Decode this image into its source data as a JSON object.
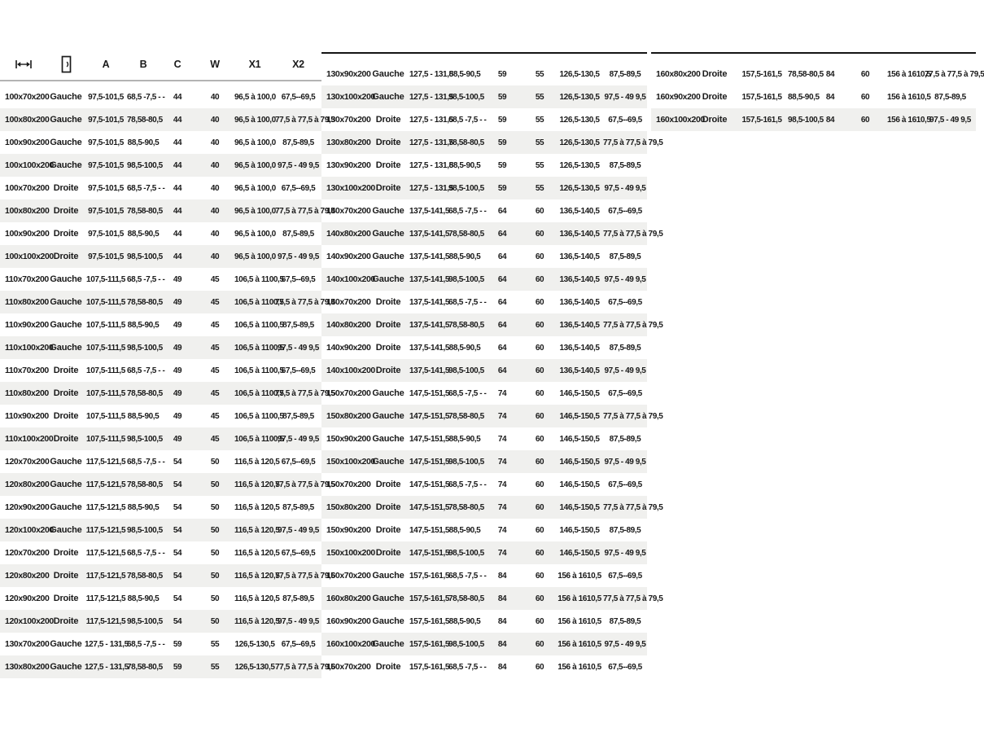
{
  "page": {
    "background": "#ffffff"
  },
  "colors": {
    "text": "#1a1a1a",
    "row_stripe": "#f0f0ee",
    "header_underline": "#b3b3b3",
    "table_top_border": "#141414"
  },
  "header": {
    "icon_columns": [
      "width-measure-icon",
      "door-icon"
    ],
    "columns": [
      "A",
      "B",
      "C",
      "W",
      "X1",
      "X2"
    ]
  },
  "tables": {
    "left": {
      "rows": [
        [
          "100x70x200",
          "Gauche",
          "97,5-101,5",
          "68,5 -7,5 - -",
          "44",
          "40",
          "96,5 à 100,0",
          "67,5--69,5"
        ],
        [
          "100x80x200",
          "Gauche",
          "97,5-101,5",
          "78,58-80,5",
          "44",
          "40",
          "96,5 à 100,0",
          "77,5 à 77,5 à 79,5"
        ],
        [
          "100x90x200",
          "Gauche",
          "97,5-101,5",
          "88,5-90,5",
          "44",
          "40",
          "96,5 à 100,0",
          "87,5-89,5"
        ],
        [
          "100x100x200",
          "Gauche",
          "97,5-101,5",
          "98,5-100,5",
          "44",
          "40",
          "96,5 à 100,0",
          "97,5 - 49 9,5"
        ],
        [
          "100x70x200",
          "Droite",
          "97,5-101,5",
          "68,5 -7,5 - -",
          "44",
          "40",
          "96,5 à 100,0",
          "67,5--69,5"
        ],
        [
          "100x80x200",
          "Droite",
          "97,5-101,5",
          "78,58-80,5",
          "44",
          "40",
          "96,5 à 100,0",
          "77,5 à 77,5 à 79,5"
        ],
        [
          "100x90x200",
          "Droite",
          "97,5-101,5",
          "88,5-90,5",
          "44",
          "40",
          "96,5 à 100,0",
          "87,5-89,5"
        ],
        [
          "100x100x200",
          "Droite",
          "97,5-101,5",
          "98,5-100,5",
          "44",
          "40",
          "96,5 à 100,0",
          "97,5 - 49 9,5"
        ],
        [
          "110x70x200",
          "Gauche",
          "107,5-111,5",
          "68,5 -7,5 - -",
          "49",
          "45",
          "106,5 à 1100,5",
          "67,5--69,5"
        ],
        [
          "110x80x200",
          "Gauche",
          "107,5-111,5",
          "78,58-80,5",
          "49",
          "45",
          "106,5 à 1100,5",
          "77,5 à 77,5 à 79,5"
        ],
        [
          "110x90x200",
          "Gauche",
          "107,5-111,5",
          "88,5-90,5",
          "49",
          "45",
          "106,5 à 1100,5",
          "87,5-89,5"
        ],
        [
          "110x100x200",
          "Gauche",
          "107,5-111,5",
          "98,5-100,5",
          "49",
          "45",
          "106,5 à 1100,5",
          "97,5 - 49 9,5"
        ],
        [
          "110x70x200",
          "Droite",
          "107,5-111,5",
          "68,5 -7,5 - -",
          "49",
          "45",
          "106,5 à 1100,5",
          "67,5--69,5"
        ],
        [
          "110x80x200",
          "Droite",
          "107,5-111,5",
          "78,58-80,5",
          "49",
          "45",
          "106,5 à 1100,5",
          "77,5 à 77,5 à 79,5"
        ],
        [
          "110x90x200",
          "Droite",
          "107,5-111,5",
          "88,5-90,5",
          "49",
          "45",
          "106,5 à 1100,5",
          "87,5-89,5"
        ],
        [
          "110x100x200",
          "Droite",
          "107,5-111,5",
          "98,5-100,5",
          "49",
          "45",
          "106,5 à 1100,5",
          "97,5 - 49 9,5"
        ],
        [
          "120x70x200",
          "Gauche",
          "117,5-121,5",
          "68,5 -7,5 - -",
          "54",
          "50",
          "116,5 à 120,5",
          "67,5--69,5"
        ],
        [
          "120x80x200",
          "Gauche",
          "117,5-121,5",
          "78,58-80,5",
          "54",
          "50",
          "116,5 à 120,5",
          "77,5 à 77,5 à 79,5"
        ],
        [
          "120x90x200",
          "Gauche",
          "117,5-121,5",
          "88,5-90,5",
          "54",
          "50",
          "116,5 à 120,5",
          "87,5-89,5"
        ],
        [
          "120x100x200",
          "Gauche",
          "117,5-121,5",
          "98,5-100,5",
          "54",
          "50",
          "116,5 à 120,5",
          "97,5 - 49 9,5"
        ],
        [
          "120x70x200",
          "Droite",
          "117,5-121,5",
          "68,5 -7,5 - -",
          "54",
          "50",
          "116,5 à 120,5",
          "67,5--69,5"
        ],
        [
          "120x80x200",
          "Droite",
          "117,5-121,5",
          "78,58-80,5",
          "54",
          "50",
          "116,5 à 120,5",
          "77,5 à 77,5 à 79,5"
        ],
        [
          "120x90x200",
          "Droite",
          "117,5-121,5",
          "88,5-90,5",
          "54",
          "50",
          "116,5 à 120,5",
          "87,5-89,5"
        ],
        [
          "120x100x200",
          "Droite",
          "117,5-121,5",
          "98,5-100,5",
          "54",
          "50",
          "116,5 à 120,5",
          "97,5 - 49 9,5"
        ],
        [
          "130x70x200",
          "Gauche",
          "127,5 - 131,5",
          "68,5 -7,5 - -",
          "59",
          "55",
          "126,5-130,5",
          "67,5--69,5"
        ],
        [
          "130x80x200",
          "Gauche",
          "127,5 - 131,5",
          "78,58-80,5",
          "59",
          "55",
          "126,5-130,5",
          "77,5 à 77,5 à 79,5"
        ]
      ]
    },
    "middle": {
      "rows": [
        [
          "130x90x200",
          "Gauche",
          "127,5 - 131,5",
          "88,5-90,5",
          "59",
          "55",
          "126,5-130,5",
          "87,5-89,5"
        ],
        [
          "130x100x200",
          "Gauche",
          "127,5 - 131,5",
          "98,5-100,5",
          "59",
          "55",
          "126,5-130,5",
          "97,5 - 49 9,5"
        ],
        [
          "130x70x200",
          "Droite",
          "127,5 - 131,5",
          "68,5 -7,5 - -",
          "59",
          "55",
          "126,5-130,5",
          "67,5--69,5"
        ],
        [
          "130x80x200",
          "Droite",
          "127,5 - 131,5",
          "78,58-80,5",
          "59",
          "55",
          "126,5-130,5",
          "77,5 à 77,5 à 79,5"
        ],
        [
          "130x90x200",
          "Droite",
          "127,5 - 131,5",
          "88,5-90,5",
          "59",
          "55",
          "126,5-130,5",
          "87,5-89,5"
        ],
        [
          "130x100x200",
          "Droite",
          "127,5 - 131,5",
          "98,5-100,5",
          "59",
          "55",
          "126,5-130,5",
          "97,5 - 49 9,5"
        ],
        [
          "140x70x200",
          "Gauche",
          "137,5-141,5",
          "68,5 -7,5 - -",
          "64",
          "60",
          "136,5-140,5",
          "67,5--69,5"
        ],
        [
          "140x80x200",
          "Gauche",
          "137,5-141,5",
          "78,58-80,5",
          "64",
          "60",
          "136,5-140,5",
          "77,5 à 77,5 à 79,5"
        ],
        [
          "140x90x200",
          "Gauche",
          "137,5-141,5",
          "88,5-90,5",
          "64",
          "60",
          "136,5-140,5",
          "87,5-89,5"
        ],
        [
          "140x100x200",
          "Gauche",
          "137,5-141,5",
          "98,5-100,5",
          "64",
          "60",
          "136,5-140,5",
          "97,5 - 49 9,5"
        ],
        [
          "140x70x200",
          "Droite",
          "137,5-141,5",
          "68,5 -7,5 - -",
          "64",
          "60",
          "136,5-140,5",
          "67,5--69,5"
        ],
        [
          "140x80x200",
          "Droite",
          "137,5-141,5",
          "78,58-80,5",
          "64",
          "60",
          "136,5-140,5",
          "77,5 à 77,5 à 79,5"
        ],
        [
          "140x90x200",
          "Droite",
          "137,5-141,5",
          "88,5-90,5",
          "64",
          "60",
          "136,5-140,5",
          "87,5-89,5"
        ],
        [
          "140x100x200",
          "Droite",
          "137,5-141,5",
          "98,5-100,5",
          "64",
          "60",
          "136,5-140,5",
          "97,5 - 49 9,5"
        ],
        [
          "150x70x200",
          "Gauche",
          "147,5-151,5",
          "68,5 -7,5 - -",
          "74",
          "60",
          "146,5-150,5",
          "67,5--69,5"
        ],
        [
          "150x80x200",
          "Gauche",
          "147,5-151,5",
          "78,58-80,5",
          "74",
          "60",
          "146,5-150,5",
          "77,5 à 77,5 à 79,5"
        ],
        [
          "150x90x200",
          "Gauche",
          "147,5-151,5",
          "88,5-90,5",
          "74",
          "60",
          "146,5-150,5",
          "87,5-89,5"
        ],
        [
          "150x100x200",
          "Gauche",
          "147,5-151,5",
          "98,5-100,5",
          "74",
          "60",
          "146,5-150,5",
          "97,5 - 49 9,5"
        ],
        [
          "150x70x200",
          "Droite",
          "147,5-151,5",
          "68,5 -7,5 - -",
          "74",
          "60",
          "146,5-150,5",
          "67,5--69,5"
        ],
        [
          "150x80x200",
          "Droite",
          "147,5-151,5",
          "78,58-80,5",
          "74",
          "60",
          "146,5-150,5",
          "77,5 à 77,5 à 79,5"
        ],
        [
          "150x90x200",
          "Droite",
          "147,5-151,5",
          "88,5-90,5",
          "74",
          "60",
          "146,5-150,5",
          "87,5-89,5"
        ],
        [
          "150x100x200",
          "Droite",
          "147,5-151,5",
          "98,5-100,5",
          "74",
          "60",
          "146,5-150,5",
          "97,5 - 49 9,5"
        ],
        [
          "160x70x200",
          "Gauche",
          "157,5-161,5",
          "68,5 -7,5 - -",
          "84",
          "60",
          "156 à 1610,5",
          "67,5--69,5"
        ],
        [
          "160x80x200",
          "Gauche",
          "157,5-161,5",
          "78,58-80,5",
          "84",
          "60",
          "156 à 1610,5",
          "77,5 à 77,5 à 79,5"
        ],
        [
          "160x90x200",
          "Gauche",
          "157,5-161,5",
          "88,5-90,5",
          "84",
          "60",
          "156 à 1610,5",
          "87,5-89,5"
        ],
        [
          "160x100x200",
          "Gauche",
          "157,5-161,5",
          "98,5-100,5",
          "84",
          "60",
          "156 à 1610,5",
          "97,5 - 49 9,5"
        ],
        [
          "160x70x200",
          "Droite",
          "157,5-161,5",
          "68,5 -7,5 - -",
          "84",
          "60",
          "156 à 1610,5",
          "67,5--69,5"
        ]
      ]
    },
    "right": {
      "rows": [
        [
          "160x80x200",
          "Droite",
          "157,5-161,5",
          "78,58-80,5",
          "84",
          "60",
          "156 à 1610,5",
          "77,5 à 77,5 à 79,5"
        ],
        [
          "160x90x200",
          "Droite",
          "157,5-161,5",
          "88,5-90,5",
          "84",
          "60",
          "156 à 1610,5",
          "87,5-89,5"
        ],
        [
          "160x100x200",
          "Droite",
          "157,5-161,5",
          "98,5-100,5",
          "84",
          "60",
          "156 à 1610,5",
          "97,5 - 49 9,5"
        ]
      ]
    }
  }
}
